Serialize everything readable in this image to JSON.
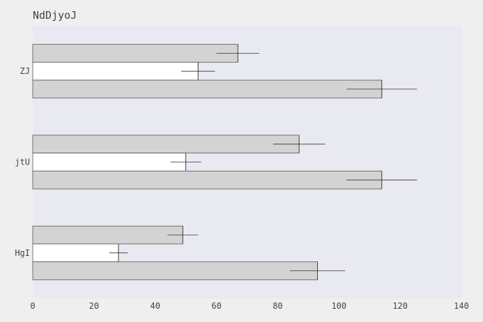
{
  "chart_data": {
    "type": "bar",
    "orientation": "horizontal",
    "title": "NdDjyoJ",
    "xlabel": "",
    "ylabel": "",
    "categories": [
      "ZJ",
      "jtU",
      "HgI"
    ],
    "series": [
      {
        "values": [
          67,
          87,
          49
        ],
        "errors": [
          7,
          8.5,
          5
        ],
        "color": "#d3d3d3"
      },
      {
        "values": [
          54,
          50,
          28
        ],
        "errors": [
          5.5,
          5,
          3
        ],
        "color": "#ffffff"
      },
      {
        "values": [
          114,
          114,
          93
        ],
        "errors": [
          11.5,
          11.5,
          9
        ],
        "color": "#d3d3d3"
      }
    ],
    "xlim": [
      0,
      140
    ],
    "xticks": [
      0,
      20,
      40,
      60,
      80,
      100,
      120,
      140
    ],
    "grid": false,
    "legend": "none",
    "colors": {
      "page": "#efefef",
      "plot_bg": "#e9e9f2",
      "bar_edge": "#555555",
      "text": "#444444"
    }
  }
}
